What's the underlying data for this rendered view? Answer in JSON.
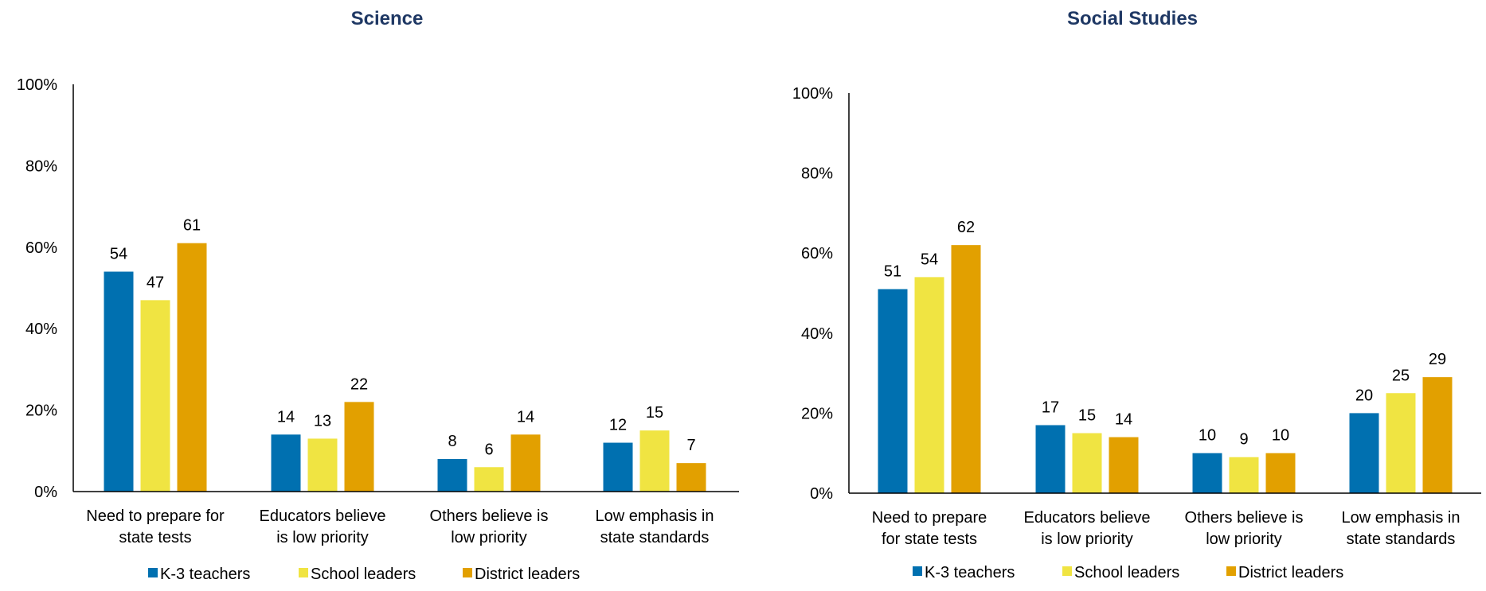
{
  "colors": {
    "k3_teachers": "#0070b0",
    "school_leaders": "#f0e442",
    "district_leaders": "#e2a000",
    "title": "#1f3864",
    "axis": "#000000"
  },
  "chart_data": [
    {
      "type": "bar",
      "title": "Science",
      "categories": [
        [
          "Need to prepare for",
          "state tests"
        ],
        [
          "Educators believe",
          "is low priority"
        ],
        [
          "Others believe is",
          "low priority"
        ],
        [
          "Low emphasis in",
          "state standards"
        ]
      ],
      "series": [
        {
          "name": "K-3 teachers",
          "values": [
            54,
            14,
            8,
            12
          ]
        },
        {
          "name": "School leaders",
          "values": [
            47,
            13,
            6,
            15
          ]
        },
        {
          "name": "District leaders",
          "values": [
            61,
            22,
            14,
            7
          ]
        }
      ],
      "yticks": [
        "0%",
        "20%",
        "40%",
        "60%",
        "80%",
        "100%"
      ],
      "ylim": [
        0,
        100
      ],
      "grid": false,
      "legend": "bottom"
    },
    {
      "type": "bar",
      "title": "Social Studies",
      "categories": [
        [
          "Need to prepare",
          "for state tests"
        ],
        [
          "Educators believe",
          "is low priority"
        ],
        [
          "Others believe is",
          "low priority"
        ],
        [
          "Low emphasis in",
          "state standards"
        ]
      ],
      "series": [
        {
          "name": "K-3 teachers",
          "values": [
            51,
            17,
            10,
            20
          ]
        },
        {
          "name": "School leaders",
          "values": [
            54,
            15,
            9,
            25
          ]
        },
        {
          "name": "District leaders",
          "values": [
            62,
            14,
            10,
            29
          ]
        }
      ],
      "yticks": [
        "0%",
        "20%",
        "40%",
        "60%",
        "80%",
        "100%"
      ],
      "ylim": [
        0,
        100
      ],
      "grid": false,
      "legend": "bottom"
    }
  ]
}
